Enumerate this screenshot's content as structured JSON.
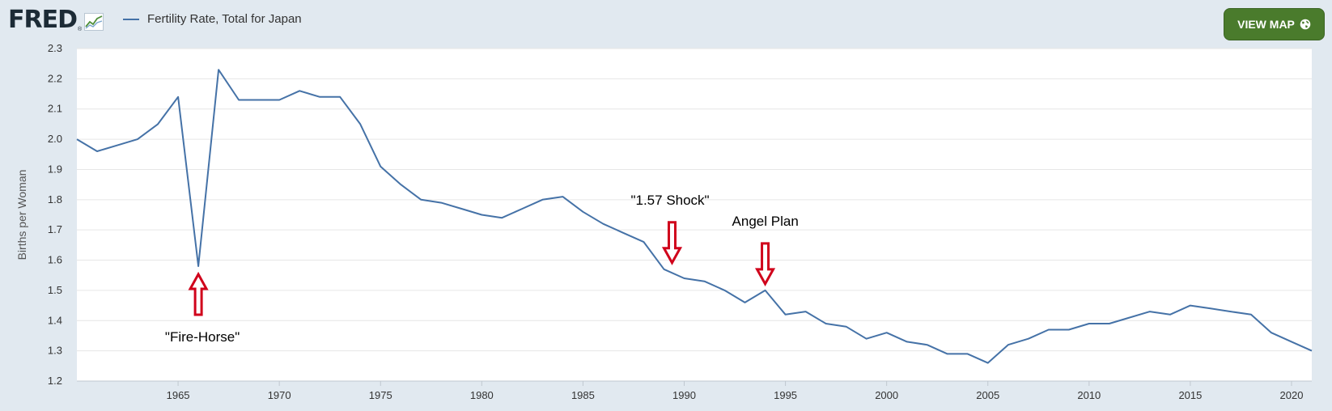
{
  "header": {
    "logo_text": "FRED",
    "logo_reg": "®",
    "legend_label": "Fertility Rate, Total for Japan",
    "view_map_label": "VIEW MAP"
  },
  "colors": {
    "series": "#4572a7",
    "annotation_arrow": "#d0021b",
    "button": "#4a7b2c",
    "background": "#e1e9f0"
  },
  "chart_data": {
    "type": "line",
    "title": "",
    "ylabel": "Births per Woman",
    "xlabel": "",
    "xlim": [
      1960,
      2021
    ],
    "ylim": [
      1.2,
      2.3
    ],
    "yticks": [
      "1.2",
      "1.3",
      "1.4",
      "1.5",
      "1.6",
      "1.7",
      "1.8",
      "1.9",
      "2.0",
      "2.1",
      "2.2",
      "2.3"
    ],
    "xticks": [
      "1965",
      "1970",
      "1975",
      "1980",
      "1985",
      "1990",
      "1995",
      "2000",
      "2005",
      "2010",
      "2015",
      "2020"
    ],
    "grid": true,
    "series": [
      {
        "name": "Fertility Rate, Total for Japan",
        "x": [
          1960,
          1961,
          1962,
          1963,
          1964,
          1965,
          1966,
          1967,
          1968,
          1969,
          1970,
          1971,
          1972,
          1973,
          1974,
          1975,
          1976,
          1977,
          1978,
          1979,
          1980,
          1981,
          1982,
          1983,
          1984,
          1985,
          1986,
          1987,
          1988,
          1989,
          1990,
          1991,
          1992,
          1993,
          1994,
          1995,
          1996,
          1997,
          1998,
          1999,
          2000,
          2001,
          2002,
          2003,
          2004,
          2005,
          2006,
          2007,
          2008,
          2009,
          2010,
          2011,
          2012,
          2013,
          2014,
          2015,
          2016,
          2017,
          2018,
          2019,
          2020,
          2021
        ],
        "values": [
          2.0,
          1.96,
          1.98,
          2.0,
          2.05,
          2.14,
          1.58,
          2.23,
          2.13,
          2.13,
          2.13,
          2.16,
          2.14,
          2.14,
          2.05,
          1.91,
          1.85,
          1.8,
          1.79,
          1.77,
          1.75,
          1.74,
          1.77,
          1.8,
          1.81,
          1.76,
          1.72,
          1.69,
          1.66,
          1.57,
          1.54,
          1.53,
          1.5,
          1.46,
          1.5,
          1.42,
          1.43,
          1.39,
          1.38,
          1.34,
          1.36,
          1.33,
          1.32,
          1.29,
          1.29,
          1.26,
          1.32,
          1.34,
          1.37,
          1.37,
          1.39,
          1.39,
          1.41,
          1.43,
          1.42,
          1.45,
          1.44,
          1.43,
          1.42,
          1.36,
          1.33,
          1.3
        ]
      }
    ],
    "annotations": [
      {
        "text": "\"Fire-Horse\"",
        "x": 1966,
        "y": 1.58,
        "arrow": "up"
      },
      {
        "text": "\"1.57 Shock\"",
        "x": 1989.4,
        "y": 1.57,
        "arrow": "down"
      },
      {
        "text": "Angel Plan",
        "x": 1994,
        "y": 1.5,
        "arrow": "down"
      }
    ]
  }
}
